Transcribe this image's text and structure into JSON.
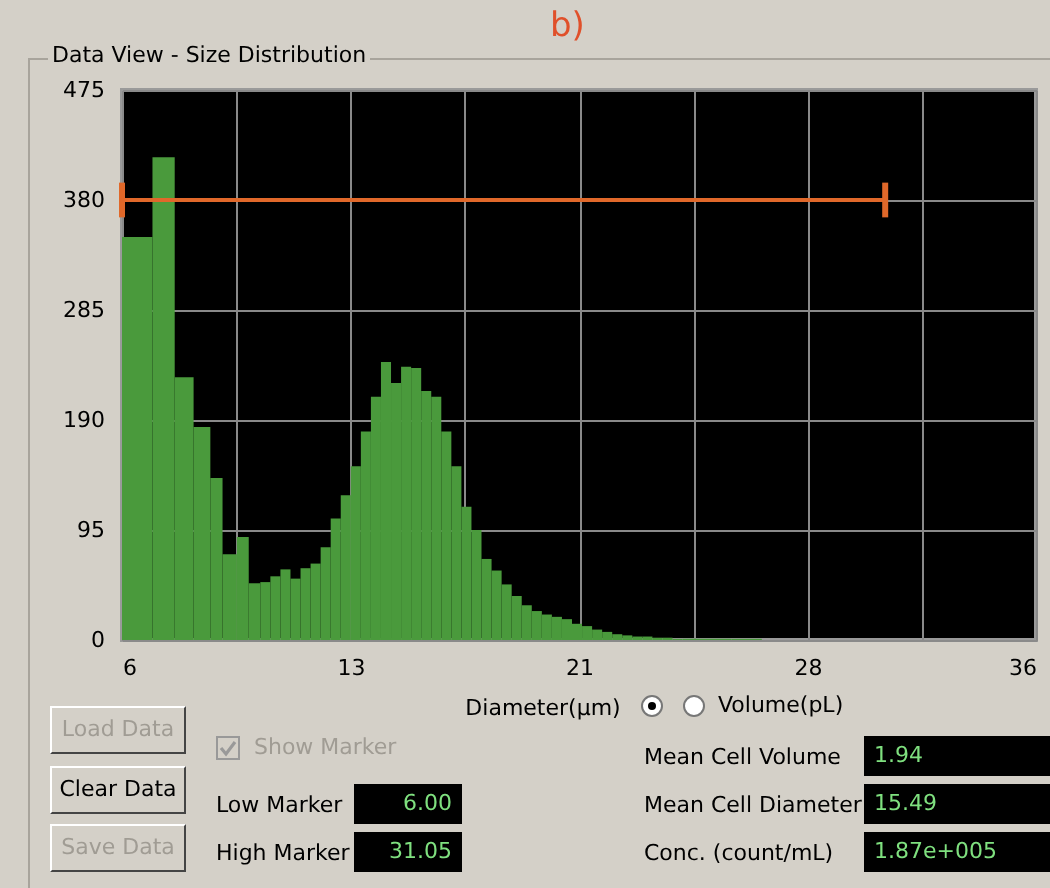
{
  "chart_data": {
    "type": "histogram",
    "title": "Data View - Size Distribution",
    "xlabel": "Diameter(μm)",
    "color": "#4a9a3c",
    "grid": true,
    "bins": [
      6,
      7.0,
      7.73,
      8.35,
      8.9,
      9.3,
      9.77,
      10.16,
      10.54,
      10.87,
      11.2,
      11.53,
      11.86,
      12.19,
      12.52,
      12.85,
      13.18,
      13.51,
      13.84,
      14.17,
      14.5,
      14.83,
      15.16,
      15.49,
      15.82,
      16.15,
      16.48,
      16.81,
      17.14,
      17.47,
      17.8,
      18.13,
      18.46,
      18.79,
      19.12,
      19.45,
      19.78,
      20.11,
      20.44,
      20.77,
      21.1,
      21.43,
      21.76,
      22.09,
      22.42,
      22.75,
      23.08,
      23.41,
      23.74,
      24.07,
      24.4,
      26.0,
      27.0
    ],
    "values": [
      348,
      417,
      227,
      184,
      140,
      74,
      89,
      49,
      50,
      55,
      61,
      53,
      62,
      66,
      80,
      105,
      125,
      150,
      180,
      210,
      240,
      222,
      236,
      235,
      215,
      210,
      180,
      150,
      115,
      95,
      70,
      60,
      48,
      38,
      30,
      25,
      22,
      20,
      18,
      14,
      12,
      9,
      7,
      5,
      4,
      3,
      3,
      2,
      2,
      1,
      1,
      1
    ],
    "xlim": [
      6,
      36
    ],
    "xticks": [
      6,
      {
        "value": 9.75,
        "label": null
      },
      {
        "value": 13.5,
        "label": "13"
      },
      {
        "value": 17.25,
        "label": null
      },
      21,
      {
        "value": 24.75,
        "label": null
      },
      {
        "value": 28.5,
        "label": "28"
      },
      {
        "value": 32.25,
        "label": null
      },
      36
    ],
    "ylim": [
      0,
      475
    ],
    "yticks": [
      0,
      95,
      190,
      285,
      380,
      475
    ],
    "series": [
      {
        "type": "line",
        "x": [
          6,
          31.05
        ],
        "values": [
          380,
          380
        ],
        "errors": [
          15,
          15
        ],
        "color": "#e0682a"
      }
    ],
    "annotations": [
      "b)",
      "Volume(pL)",
      "Load Data",
      "Clear Data",
      "Save Data",
      "Show Marker",
      "Low Marker",
      "6.00",
      "High Marker",
      "31.05",
      "Mean Cell Volume",
      "1.94",
      "Mean Cell Diameter",
      "15.49",
      "Conc. (count/mL)",
      "1.87e+005"
    ]
  }
}
